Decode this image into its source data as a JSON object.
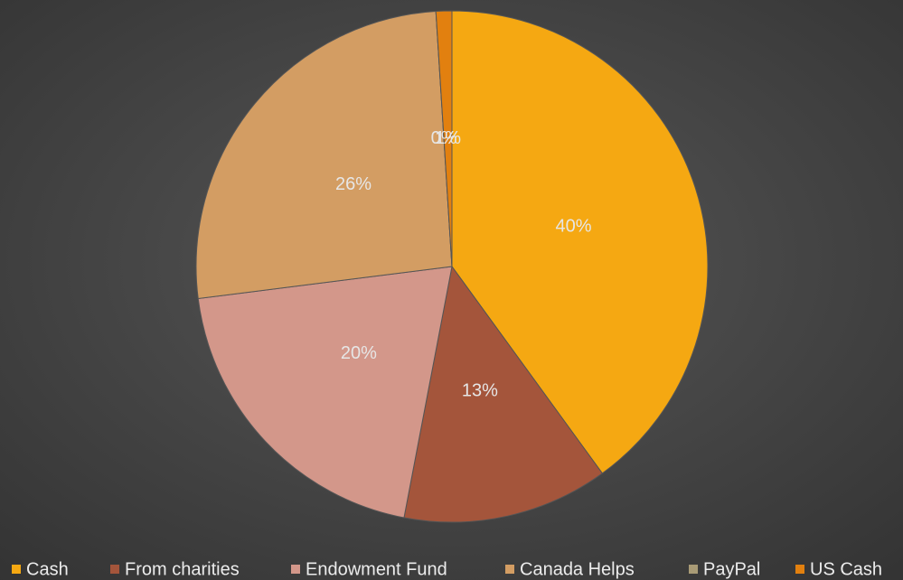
{
  "chart_data": {
    "type": "pie",
    "categories": [
      "Cash",
      "From charities",
      "Endowment Fund",
      "Canada Helps",
      "PayPal",
      "US Cash"
    ],
    "values": [
      40,
      13,
      20,
      26,
      0,
      1
    ],
    "value_labels": [
      "40%",
      "13%",
      "20%",
      "26%",
      "0%",
      "1%"
    ],
    "colors": [
      "#f5a812",
      "#a4553b",
      "#d3978a",
      "#d39d63",
      "#a99b76",
      "#e2800f"
    ],
    "legend": "bottom"
  }
}
